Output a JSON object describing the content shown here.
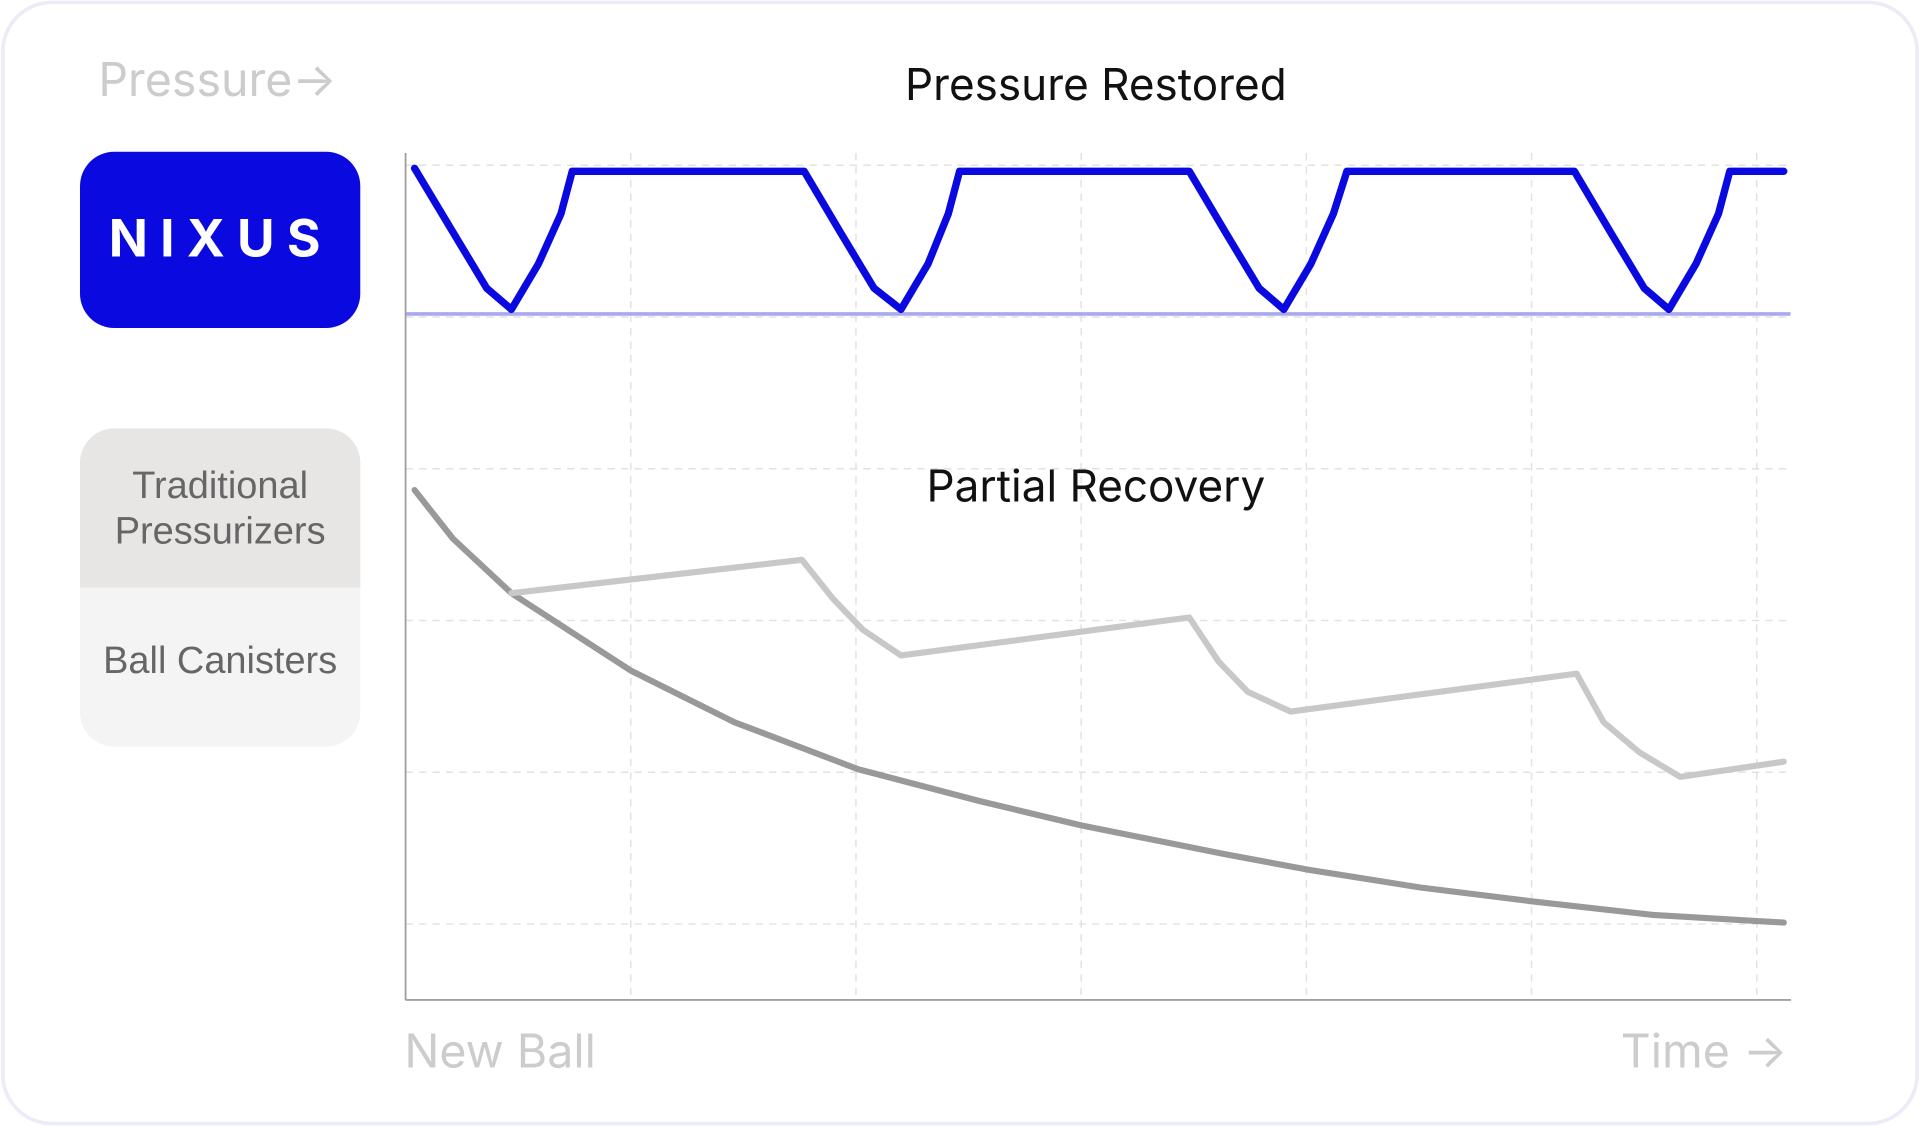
{
  "chart_data": {
    "type": "line",
    "y_label": "Pressure→",
    "x_start_label": "New Ball",
    "x_label": "Time →",
    "annotations": [
      "Pressure Restored",
      "Partial Recovery"
    ],
    "xlim": [
      0,
      6.15
    ],
    "ylim": [
      0,
      5.6
    ],
    "xticks": [
      1,
      2,
      3,
      4,
      5,
      6
    ],
    "yticks": [
      0.5,
      1.5,
      2.5,
      3.5,
      4.5,
      5.5
    ],
    "grid": true,
    "reference_lines": [
      {
        "value": 4.52,
        "color": "#a9a9f0"
      }
    ],
    "series": [
      {
        "name": "NIXUS",
        "color": "#0a0ae0",
        "x": [
          0.04,
          0.21,
          0.36,
          0.47,
          0.59,
          0.69,
          0.74,
          1.77,
          1.93,
          2.08,
          2.2,
          2.32,
          2.41,
          2.46,
          3.48,
          3.64,
          3.79,
          3.9,
          4.02,
          4.12,
          4.18,
          5.19,
          5.35,
          5.5,
          5.61,
          5.73,
          5.83,
          5.88,
          6.12
        ],
        "values": [
          5.48,
          5.06,
          4.69,
          4.55,
          4.85,
          5.18,
          5.46,
          5.46,
          5.06,
          4.69,
          4.55,
          4.85,
          5.18,
          5.46,
          5.46,
          5.06,
          4.69,
          4.55,
          4.85,
          5.18,
          5.46,
          5.46,
          5.06,
          4.69,
          4.55,
          4.85,
          5.18,
          5.46,
          5.46
        ]
      },
      {
        "name": "Traditional Pressurizers",
        "color": "#c8c8c8",
        "x": [
          0.47,
          1.76,
          1.9,
          2.03,
          2.2,
          3.48,
          3.61,
          3.74,
          3.93,
          5.2,
          5.32,
          5.48,
          5.66,
          6.12
        ],
        "values": [
          2.68,
          2.9,
          2.64,
          2.44,
          2.27,
          2.52,
          2.23,
          2.03,
          1.9,
          2.15,
          1.83,
          1.63,
          1.47,
          1.57
        ]
      },
      {
        "name": "Ball Canisters",
        "color": "#999999",
        "x": [
          0.04,
          0.21,
          0.47,
          1.0,
          1.46,
          2.01,
          2.55,
          3.0,
          3.64,
          4.0,
          4.51,
          5.0,
          5.54,
          6.12
        ],
        "values": [
          3.36,
          3.04,
          2.68,
          2.17,
          1.83,
          1.52,
          1.31,
          1.15,
          0.96,
          0.86,
          0.74,
          0.65,
          0.56,
          0.51
        ]
      }
    ]
  }
}
